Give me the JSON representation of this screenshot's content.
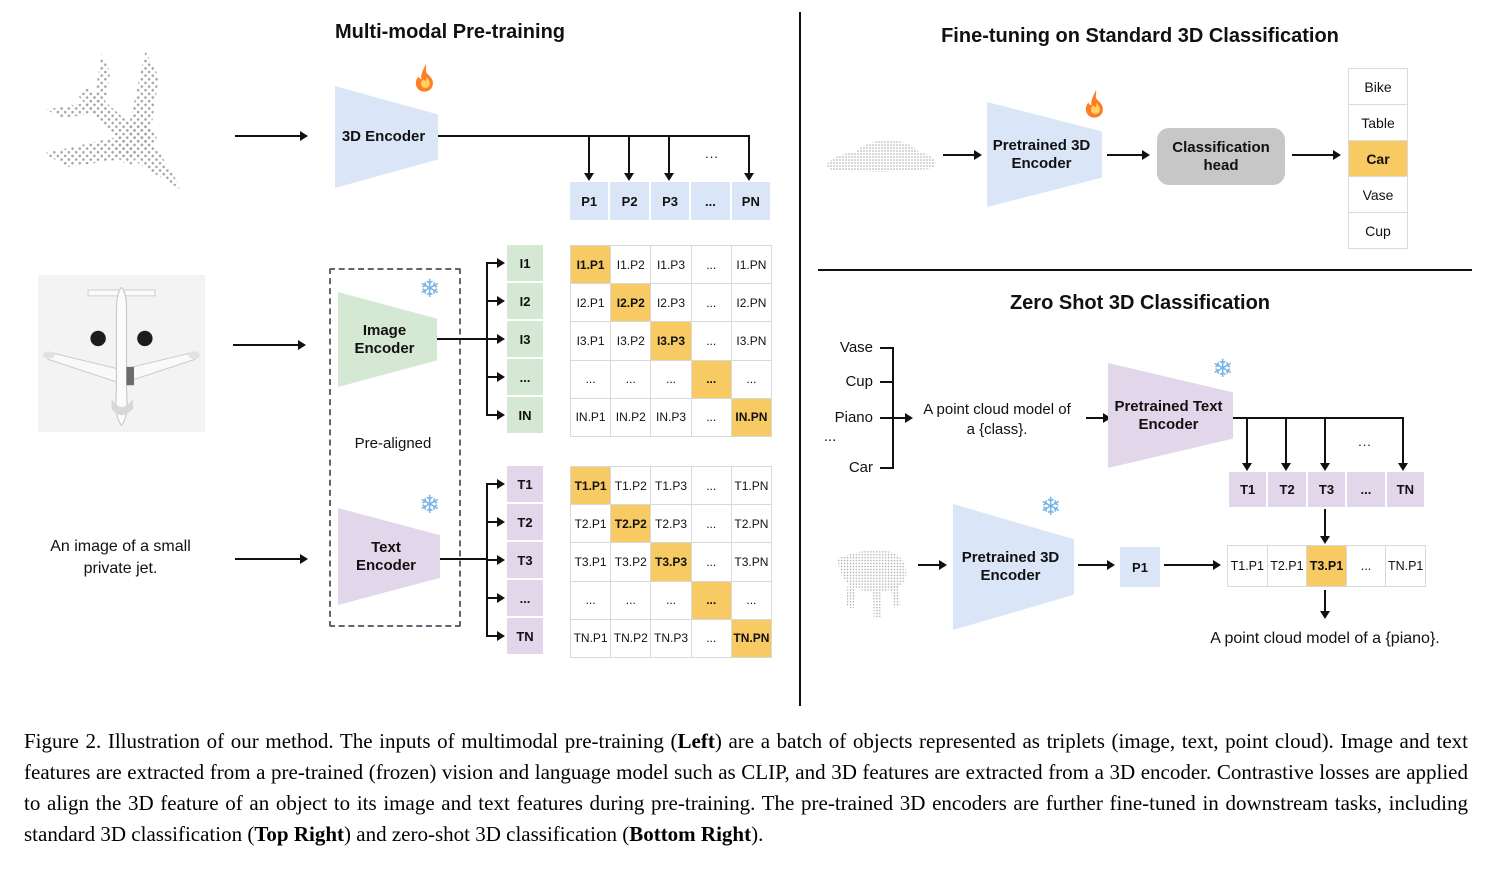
{
  "panels": {
    "pretraining": {
      "title": "Multi-modal Pre-training",
      "encoder_3d_label": "3D Encoder",
      "image_encoder": {
        "line1": "Image",
        "line2": "Encoder"
      },
      "text_encoder": {
        "line1": "Text",
        "line2": "Encoder"
      },
      "pre_aligned": "Pre-aligned",
      "input_text": {
        "line1": "An image of a small",
        "line2": "private jet."
      },
      "ellipsis": "...",
      "p_row": [
        "P1",
        "P2",
        "P3",
        "...",
        "PN"
      ],
      "image_rows": [
        "I1",
        "I2",
        "I3",
        "...",
        "IN"
      ],
      "image_matrix": [
        [
          "I1.P1",
          "I1.P2",
          "I1.P3",
          "...",
          "I1.PN"
        ],
        [
          "I2.P1",
          "I2.P2",
          "I2.P3",
          "...",
          "I2.PN"
        ],
        [
          "I3.P1",
          "I3.P2",
          "I3.P3",
          "...",
          "I3.PN"
        ],
        [
          "...",
          "...",
          "...",
          "...",
          "..."
        ],
        [
          "IN.P1",
          "IN.P2",
          "IN.P3",
          "...",
          "IN.PN"
        ]
      ],
      "text_rows": [
        "T1",
        "T2",
        "T3",
        "...",
        "TN"
      ],
      "text_matrix": [
        [
          "T1.P1",
          "T1.P2",
          "T1.P3",
          "...",
          "T1.PN"
        ],
        [
          "T2.P1",
          "T2.P2",
          "T2.P3",
          "...",
          "T2.PN"
        ],
        [
          "T3.P1",
          "T3.P2",
          "T3.P3",
          "...",
          "T3.PN"
        ],
        [
          "...",
          "...",
          "...",
          "...",
          "..."
        ],
        [
          "TN.P1",
          "TN.P2",
          "TN.P3",
          "...",
          "TN.PN"
        ]
      ]
    },
    "finetuning": {
      "title": "Fine-tuning on Standard 3D Classification",
      "encoder": {
        "line1": "Pretrained 3D",
        "line2": "Encoder"
      },
      "head": {
        "line1": "Classification",
        "line2": "head"
      },
      "classes": [
        "Bike",
        "Table",
        "Car",
        "Vase",
        "Cup"
      ],
      "highlighted_class": "Car"
    },
    "zeroshot": {
      "title": "Zero Shot 3D Classification",
      "classes": [
        "Vase",
        "Cup",
        "Piano",
        "...",
        "Car"
      ],
      "prompt": {
        "line1": "A point cloud model of",
        "line2": "a {class}."
      },
      "text_encoder": {
        "line1": "Pretrained Text",
        "line2": "Encoder"
      },
      "encoder": {
        "line1": "Pretrained 3D",
        "line2": "Encoder"
      },
      "p1": "P1",
      "ellipsis": "...",
      "t_row": [
        "T1",
        "T2",
        "T3",
        "...",
        "TN"
      ],
      "result_row": [
        "T1.P1",
        "T2.P1",
        "T3.P1",
        "...",
        "TN.P1"
      ],
      "result_highlight_index": 2,
      "output_text": "A point cloud model of a {piano}."
    }
  },
  "icons": {
    "trainable": "fire-icon",
    "frozen": "snowflake-icon",
    "snowflake_char": "❄"
  },
  "colors": {
    "highlight_orange": "#F8CA63",
    "encoder_blue": "#DAE6F8",
    "encoder_green": "#D5E8D4",
    "encoder_purple": "#E2D6EA",
    "head_gray": "#C7C7C7",
    "grid_border": "#D9D9D9"
  },
  "caption": {
    "label": "Figure 2.",
    "segments": [
      {
        "text": "Figure 2. Illustration of our method. The inputs of multimodal pre-training (",
        "bold": false
      },
      {
        "text": "Left",
        "bold": true
      },
      {
        "text": ") are a batch of objects represented as triplets (image, text, point cloud). Image and text features are extracted from a pre-trained (frozen) vision and language model such as CLIP, and 3D features are extracted from a 3D encoder. Contrastive losses are applied to align the 3D feature of an object to its image and text features during pre-training. The pre-trained 3D encoders are further fine-tuned in downstream tasks, including standard 3D classification (",
        "bold": false
      },
      {
        "text": "Top Right",
        "bold": true
      },
      {
        "text": ") and zero-shot 3D classification (",
        "bold": false
      },
      {
        "text": "Bottom Right",
        "bold": true
      },
      {
        "text": ").",
        "bold": false
      }
    ]
  }
}
